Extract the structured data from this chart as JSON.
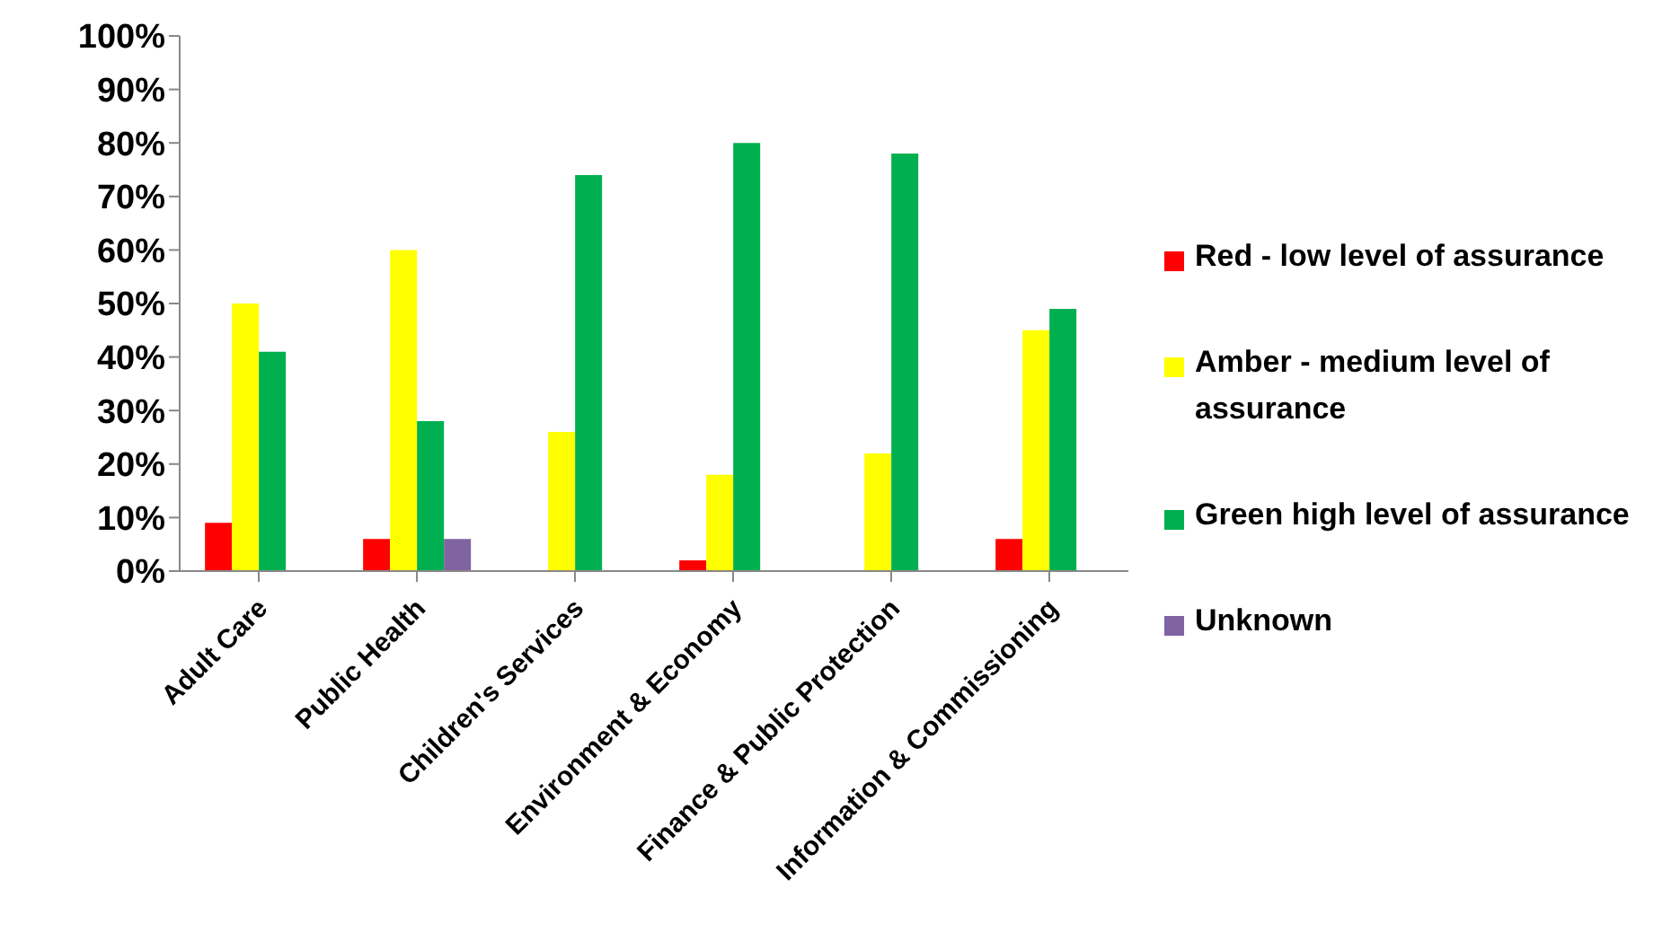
{
  "chart_data": {
    "type": "bar",
    "categories": [
      "Adult Care",
      "Public Health",
      "Children's Services",
      "Environment & Economy",
      "Finance & Public Protection",
      "Information & Commissioning"
    ],
    "series": [
      {
        "name": "Red - low level of assurance",
        "color": "#ff0000",
        "values": [
          9,
          6,
          0,
          2,
          0,
          6
        ]
      },
      {
        "name": "Amber - medium level of assurance",
        "color": "#ffff00",
        "values": [
          50,
          60,
          26,
          18,
          22,
          45
        ]
      },
      {
        "name": "Green high level of assurance",
        "color": "#00b050",
        "values": [
          41,
          28,
          74,
          80,
          78,
          49
        ]
      },
      {
        "name": "Unknown",
        "color": "#8064a2",
        "values": [
          0,
          6,
          0,
          0,
          0,
          0
        ]
      }
    ],
    "ylim": [
      0,
      100
    ],
    "yticks": [
      {
        "value": 0,
        "label": "0%"
      },
      {
        "value": 10,
        "label": "10%"
      },
      {
        "value": 20,
        "label": "20%"
      },
      {
        "value": 30,
        "label": "30%"
      },
      {
        "value": 40,
        "label": "40%"
      },
      {
        "value": 50,
        "label": "50%"
      },
      {
        "value": 60,
        "label": "60%"
      },
      {
        "value": 70,
        "label": "70%"
      },
      {
        "value": 80,
        "label": "80%"
      },
      {
        "value": 90,
        "label": "90%"
      },
      {
        "value": 100,
        "label": "100%"
      }
    ],
    "grid": false,
    "legend": "right"
  }
}
